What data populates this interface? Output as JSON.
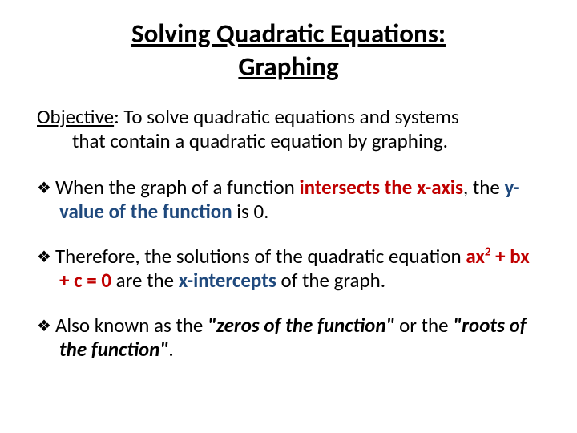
{
  "title_line1": "Solving Quadratic Equations:",
  "title_line2": "Graphing",
  "objective": {
    "label": "Objective",
    "text_part1": ": To solve quadratic equations and systems",
    "text_indent": "that contain a quadratic equation by graphing."
  },
  "bullets": [
    {
      "diamond": "❖",
      "segments": [
        {
          "t": "When the graph of a function ",
          "cls": ""
        },
        {
          "t": "intersects the x-axis",
          "cls": "red"
        },
        {
          "t": ", the ",
          "cls": ""
        },
        {
          "t": "y-value of the function",
          "cls": "blue"
        },
        {
          "t": " is 0.",
          "cls": ""
        }
      ]
    },
    {
      "diamond": "❖",
      "segments": [
        {
          "t": "Therefore, the solutions of the quadratic equation ",
          "cls": ""
        },
        {
          "t": "ax",
          "cls": "red"
        },
        {
          "t": "2",
          "cls": "red sup"
        },
        {
          "t": " + bx + c = 0",
          "cls": "red"
        },
        {
          "t": " are the ",
          "cls": ""
        },
        {
          "t": "x-intercepts",
          "cls": "blue"
        },
        {
          "t": " of the graph.",
          "cls": ""
        }
      ]
    },
    {
      "diamond": "❖",
      "segments": [
        {
          "t": "Also known as the ",
          "cls": ""
        },
        {
          "t": "\"zeros of the function\"",
          "cls": "bold italic"
        },
        {
          "t": " or the ",
          "cls": ""
        },
        {
          "t": "\"roots of the function\"",
          "cls": "bold italic"
        },
        {
          "t": ".",
          "cls": ""
        }
      ]
    }
  ],
  "colors": {
    "red": "#c00000",
    "blue": "#1f497d",
    "text": "#000000",
    "background": "#ffffff"
  },
  "font": {
    "family": "Calibri",
    "title_size_pt": 33,
    "body_size_pt": 25
  }
}
